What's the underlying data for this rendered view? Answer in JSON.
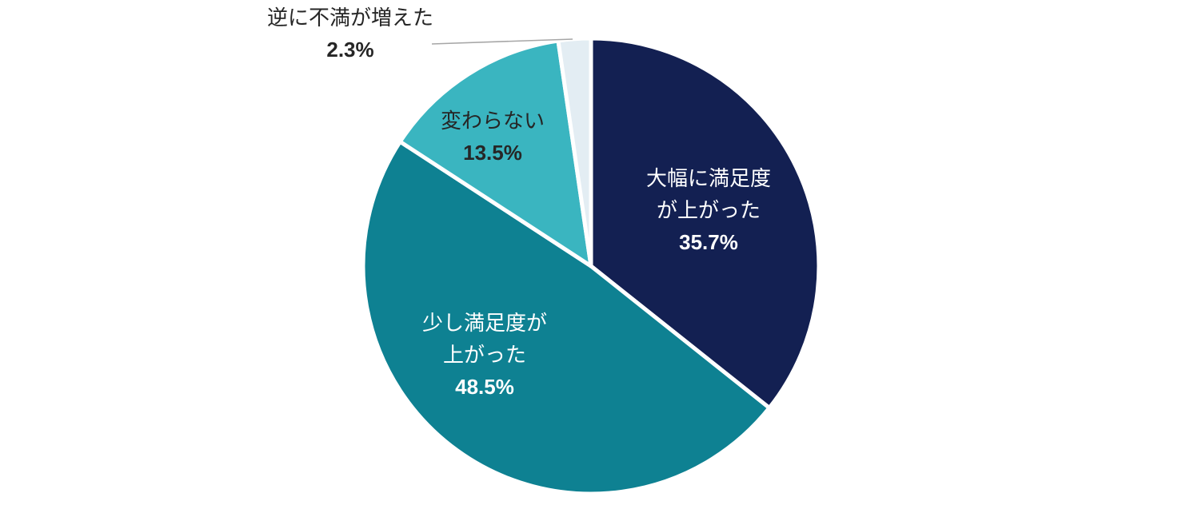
{
  "chart_data": {
    "type": "pie",
    "start_angle_deg": 0,
    "direction": "clockwise",
    "background": "#ffffff",
    "slice_border_color": "#ffffff",
    "leader_line_color": "#a6a6a6",
    "categories": [
      "大幅に満足度が上がった",
      "少し満足度が上がった",
      "変わらない",
      "逆に不満が増えた"
    ],
    "values": [
      35.7,
      48.5,
      13.5,
      2.3
    ],
    "slices": [
      {
        "label": "大幅に満足度が上がった",
        "label_lines": [
          "大幅に満足度",
          "が上がった"
        ],
        "value": 35.7,
        "pct_text": "35.7%",
        "color": "#132052",
        "text_color": "#ffffff",
        "label_position": "inside"
      },
      {
        "label": "少し満足度が上がった",
        "label_lines": [
          "少し満足度が",
          "上がった"
        ],
        "value": 48.5,
        "pct_text": "48.5%",
        "color": "#0e8192",
        "text_color": "#ffffff",
        "label_position": "inside"
      },
      {
        "label": "変わらない",
        "label_lines": [
          "変わらない"
        ],
        "value": 13.5,
        "pct_text": "13.5%",
        "color": "#3ab5c0",
        "text_color": "#262626",
        "label_position": "inside"
      },
      {
        "label": "逆に不満が増えた",
        "label_lines": [
          "逆に不満が増えた"
        ],
        "value": 2.3,
        "pct_text": "2.3%",
        "color": "#e3edf3",
        "text_color": "#262626",
        "label_position": "outside",
        "leader_line": true
      }
    ]
  }
}
